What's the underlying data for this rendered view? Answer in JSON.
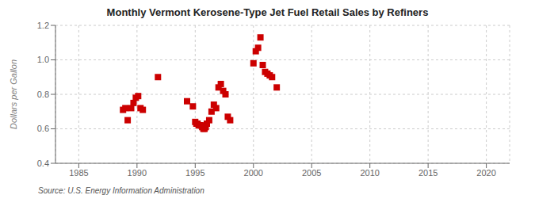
{
  "chart_data": {
    "type": "scatter",
    "title": "Monthly Vermont Kerosene-Type Jet Fuel Retail Sales by Refiners",
    "ylabel": "Dollars per Gallon",
    "annotations": [
      "Source: U.S. Energy Information Administration"
    ],
    "color": "#cc0000",
    "marker": "square",
    "grid": true,
    "xlim": [
      1983,
      2022
    ],
    "ylim": [
      0.4,
      1.2
    ],
    "xticks": [
      1985,
      1990,
      1995,
      2000,
      2005,
      2010,
      2015,
      2020
    ],
    "yticks": [
      0.4,
      0.6,
      0.8,
      {
        "value": 1.0,
        "label": "1.0"
      },
      1.2
    ],
    "x": [
      1988.8,
      1989.0,
      1989.2,
      1989.5,
      1989.7,
      1989.9,
      1990.1,
      1990.3,
      1990.5,
      1991.8,
      1994.3,
      1994.8,
      1995.0,
      1995.1,
      1995.2,
      1995.3,
      1995.4,
      1995.5,
      1995.6,
      1995.7,
      1995.8,
      1995.9,
      1996.0,
      1996.2,
      1996.4,
      1996.6,
      1996.8,
      1997.0,
      1997.2,
      1997.4,
      1997.6,
      1997.8,
      1998.0,
      2000.0,
      2000.2,
      2000.4,
      2000.6,
      2000.8,
      2001.0,
      2001.2,
      2001.4,
      2001.6,
      2002.0
    ],
    "y": [
      0.71,
      0.72,
      0.65,
      0.72,
      0.75,
      0.78,
      0.79,
      0.72,
      0.71,
      0.9,
      0.76,
      0.73,
      0.64,
      0.63,
      0.63,
      0.62,
      0.62,
      0.62,
      0.61,
      0.6,
      0.6,
      0.61,
      0.63,
      0.65,
      0.7,
      0.74,
      0.72,
      0.84,
      0.86,
      0.82,
      0.8,
      0.67,
      0.65,
      0.98,
      1.05,
      1.07,
      1.13,
      0.97,
      0.93,
      0.92,
      0.91,
      0.9,
      0.84
    ]
  }
}
